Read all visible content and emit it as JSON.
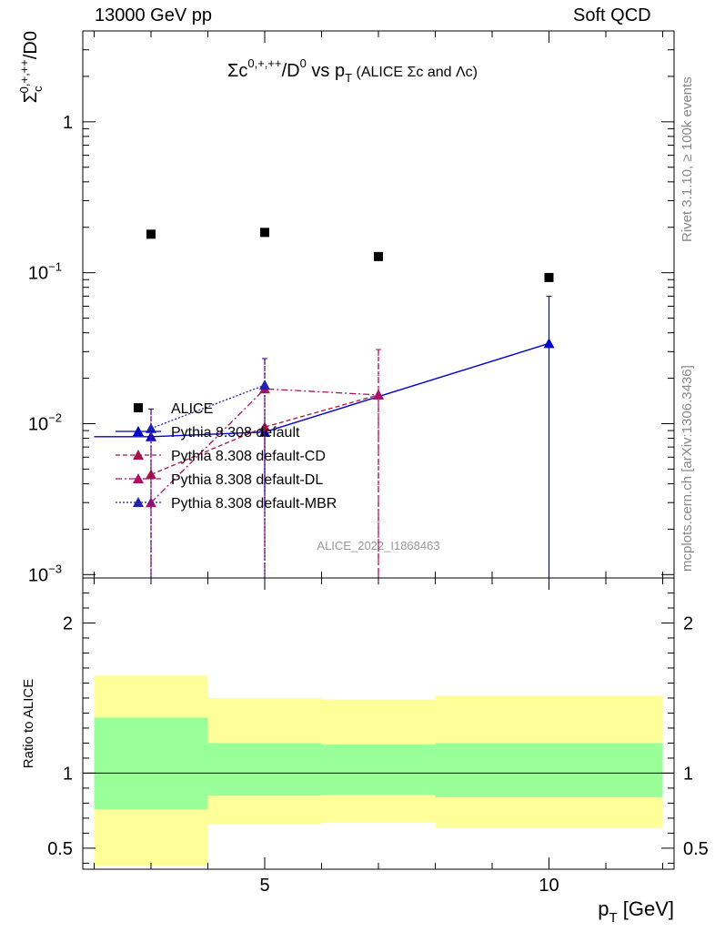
{
  "header": {
    "left": "13000 GeV pp",
    "right": "Soft QCD"
  },
  "side_labels": {
    "rivet": "Rivet 3.1.10, ≥ 100k events",
    "mcplots": "mcplots.cern.ch [arXiv:1306.3436]"
  },
  "watermark": "ALICE_2022_I1868463",
  "chart_data": [
    {
      "type": "scatter",
      "title_main": "Σc",
      "title_sup": "0,+,++",
      "title_mid": "/D",
      "title_sup2": "0",
      "title_vs": " vs p",
      "title_sub": "T",
      "title_tail": " (ALICE Σc and Λc)",
      "ylabel_main": "Σ",
      "ylabel_sub": "c",
      "ylabel_sup": "0,+,++",
      "ylabel_tail": "/D0",
      "yscale": "log",
      "ylim": [
        0.00095,
        4.0
      ],
      "xlim": [
        1.8,
        12.2
      ],
      "yticks": [
        {
          "value": 1,
          "label": "1"
        },
        {
          "value": 0.1,
          "label": "10",
          "exp": "−1"
        },
        {
          "value": 0.01,
          "label": "10",
          "exp": "−2"
        },
        {
          "value": 0.001,
          "label": "10",
          "exp": "−3"
        }
      ],
      "legend": [
        "ALICE",
        "Pythia 8.308 default",
        "Pythia 8.308 default-CD",
        "Pythia 8.308 default-DL",
        "Pythia 8.308 default-MBR"
      ],
      "series": [
        {
          "name": "ALICE",
          "style": "marker-square",
          "color": "#000000",
          "x": [
            3,
            5,
            7,
            10
          ],
          "y": [
            0.18,
            0.185,
            0.128,
            0.093
          ]
        },
        {
          "name": "Pythia 8.308 default",
          "style": "solid",
          "color": "#0000cc",
          "x": [
            3,
            5,
            10
          ],
          "xerr": [
            [
              2,
              4
            ],
            [
              4,
              6
            ],
            [
              8,
              12
            ]
          ],
          "y": [
            0.0082,
            0.0088,
            0.034
          ],
          "ylow": [
            0.0082,
            0.0028,
            0.00095
          ],
          "yhigh": [
            0.0082,
            0.0088,
            0.07
          ]
        },
        {
          "name": "Pythia 8.308 default-CD",
          "style": "dash",
          "color": "#aa1144",
          "x": [
            3,
            5,
            7
          ],
          "y": [
            0.0046,
            0.0095,
            0.0155
          ],
          "ylow": [
            0.00095,
            0.00095,
            0.00095
          ],
          "yhigh": [
            0.0125,
            0.027,
            0.031
          ]
        },
        {
          "name": "Pythia 8.308 default-DL",
          "style": "dashdot",
          "color": "#aa1166",
          "x": [
            3,
            5,
            7
          ],
          "y": [
            0.003,
            0.017,
            0.0155
          ],
          "ylow": [
            0.00095,
            0.00095,
            0.00095
          ],
          "yhigh": [
            0.0125,
            0.027,
            0.031
          ]
        },
        {
          "name": "Pythia 8.308 default-MBR",
          "style": "dot",
          "color": "#2222aa",
          "x": [
            3,
            5
          ],
          "y": [
            0.0093,
            0.018
          ],
          "ylow": [
            0.00095,
            0.00095
          ],
          "yhigh": [
            0.0125,
            0.027
          ]
        }
      ]
    },
    {
      "type": "area",
      "ylabel": "Ratio to ALICE",
      "xlabel_main": "p",
      "xlabel_sub": "T",
      "xlabel_tail": " [GeV]",
      "ylim": [
        0.36,
        2.3
      ],
      "xlim": [
        1.8,
        12.2
      ],
      "yticks": [
        {
          "value": 2,
          "label": "2"
        },
        {
          "value": 1,
          "label": "1"
        },
        {
          "value": 0.5,
          "label": "0.5"
        }
      ],
      "xticks": [
        {
          "value": 5,
          "label": "5"
        },
        {
          "value": 10,
          "label": "10"
        }
      ],
      "band_colors": {
        "outer": "#ffff99",
        "inner": "#99ff99",
        "line": "#000000"
      },
      "bands": [
        {
          "x": [
            2,
            4
          ],
          "outer": [
            0.38,
            1.65
          ],
          "inner": [
            0.76,
            1.37
          ]
        },
        {
          "x": [
            4,
            6
          ],
          "outer": [
            0.66,
            1.5
          ],
          "inner": [
            0.85,
            1.2
          ]
        },
        {
          "x": [
            6,
            8
          ],
          "outer": [
            0.67,
            1.49
          ],
          "inner": [
            0.855,
            1.19
          ]
        },
        {
          "x": [
            8,
            12
          ],
          "outer": [
            0.635,
            1.515
          ],
          "inner": [
            0.84,
            1.2
          ]
        }
      ]
    }
  ]
}
